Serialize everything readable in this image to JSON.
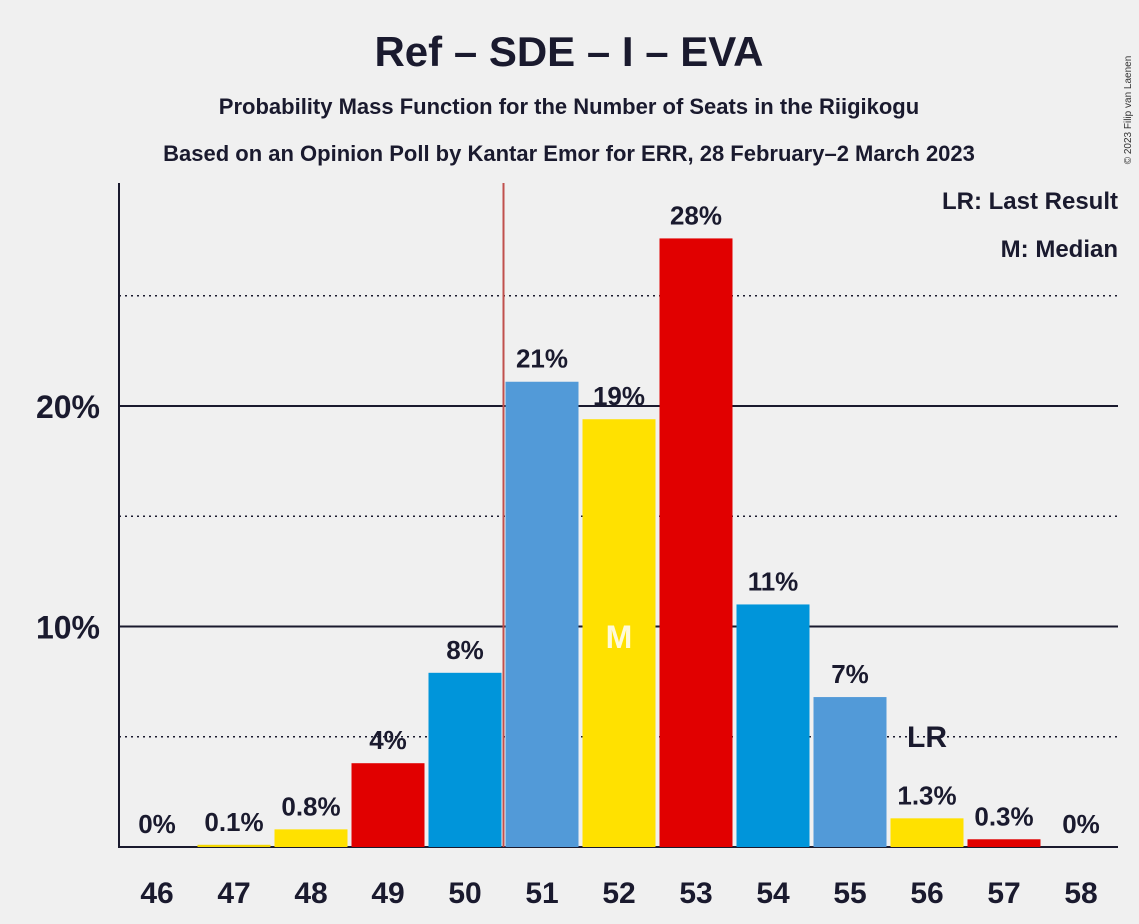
{
  "chart_data": {
    "type": "bar",
    "title": "Ref – SDE – I – EVA",
    "subtitle_1": "Probability Mass Function for the Number of Seats in the Riigikogu",
    "subtitle_2": "Based on an Opinion Poll by Kantar Emor for ERR, 28 February–2 March 2023",
    "copyright": "© 2023 Filip van Laenen",
    "legend": {
      "last_result": "LR: Last Result",
      "median": "M: Median",
      "placement": "top-right"
    },
    "xlabel": "",
    "ylabel": "",
    "ylim": [
      0,
      30
    ],
    "y_ticks": [
      {
        "value": 10,
        "label": "10%"
      },
      {
        "value": 20,
        "label": "20%"
      }
    ],
    "dotted_gridlines": [
      5,
      15,
      25
    ],
    "categories": [
      "46",
      "47",
      "48",
      "49",
      "50",
      "51",
      "52",
      "53",
      "54",
      "55",
      "56",
      "57",
      "58"
    ],
    "values": [
      0,
      0.1,
      0.8,
      3.8,
      7.9,
      21.1,
      19.4,
      27.6,
      11.0,
      6.8,
      1.3,
      0.35,
      0
    ],
    "data_labels": [
      "0%",
      "0.1%",
      "0.8%",
      "4%",
      "8%",
      "21%",
      "19%",
      "28%",
      "11%",
      "7%",
      "1.3%",
      "0.3%",
      "0%"
    ],
    "bar_colors": [
      "#f2d600",
      "#f2d600",
      "#ffe100",
      "#e10000",
      "#0095da",
      "#529ad8",
      "#ffe100",
      "#e10000",
      "#0095da",
      "#529ad8",
      "#ffe100",
      "#e10000",
      "#0095da"
    ],
    "median": {
      "category": "52",
      "label": "M"
    },
    "last_result": {
      "category": "56",
      "label": "LR"
    },
    "majority_line": {
      "after_category": "50",
      "color": "#c0504d"
    },
    "colors": {
      "text": "#1a1a2e",
      "background": "#f0f0f0",
      "majority_line": "#c0504d"
    }
  }
}
